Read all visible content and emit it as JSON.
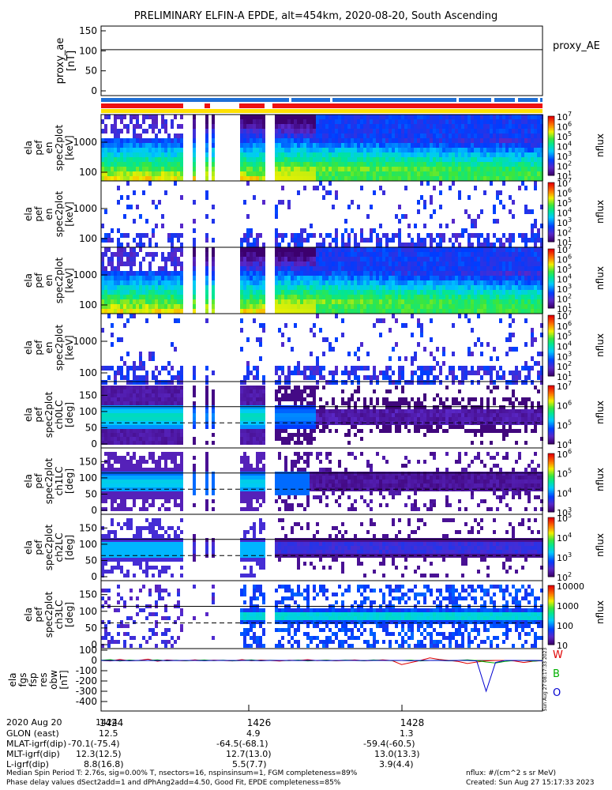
{
  "title": "PRELIMINARY ELFIN-A EPDE, alt=454km, 2020-08-20, South Ascending",
  "panels": [
    {
      "id": "proxy_ae",
      "ylabel": [
        "proxy_ae",
        "[nT]"
      ],
      "ticks": [
        "150",
        "100",
        "50",
        "0"
      ],
      "right_label": "proxy_AE"
    },
    {
      "id": "en1",
      "ylabel": [
        "ela",
        "pef",
        "en",
        "spec2plot",
        "[keV]"
      ],
      "ticks": [
        "1000",
        "100"
      ],
      "cb_label": "nflux"
    },
    {
      "id": "en2",
      "ylabel": [
        "ela",
        "pef",
        "en",
        "spec2plot",
        "[keV]"
      ],
      "ticks": [
        "1000",
        "100"
      ],
      "cb_label": "nflux"
    },
    {
      "id": "en3",
      "ylabel": [
        "ela",
        "pef",
        "en",
        "spec2plot",
        "[keV]"
      ],
      "ticks": [
        "1000",
        "100"
      ],
      "cb_label": "nflux"
    },
    {
      "id": "en4",
      "ylabel": [
        "ela",
        "pef",
        "en",
        "spec2plot",
        "[keV]"
      ],
      "ticks": [
        "1000",
        "100"
      ],
      "cb_label": "nflux"
    },
    {
      "id": "ch0",
      "ylabel": [
        "ela",
        "pef",
        "spec2plot",
        "ch0LC",
        "[deg]"
      ],
      "ticks": [
        "150",
        "100",
        "50",
        "0"
      ],
      "cb_label": "nflux"
    },
    {
      "id": "ch1",
      "ylabel": [
        "ela",
        "pef",
        "spec2plot",
        "ch1LC",
        "[deg]"
      ],
      "ticks": [
        "150",
        "100",
        "50",
        "0"
      ],
      "cb_label": "nflux"
    },
    {
      "id": "ch2",
      "ylabel": [
        "ela",
        "pef",
        "spec2plot",
        "ch2LC",
        "[deg]"
      ],
      "ticks": [
        "150",
        "100",
        "50",
        "0"
      ],
      "cb_label": "nflux"
    },
    {
      "id": "ch3",
      "ylabel": [
        "ela",
        "pef",
        "spec2plot",
        "ch3LC",
        "[deg]"
      ],
      "ticks": [
        "150",
        "100",
        "50",
        "0"
      ],
      "cb_label": "nflux"
    },
    {
      "id": "res",
      "ylabel": [
        "ela",
        "fgs",
        "fsp",
        "res",
        "obw",
        "[nT]"
      ],
      "ticks": [
        "100",
        "0",
        "-100",
        "-200",
        "-300",
        "-400"
      ],
      "legend": [
        "W",
        "B",
        "O"
      ]
    }
  ],
  "colorbars": {
    "energy": [
      "10^7",
      "10^6",
      "10^5",
      "10^4",
      "10^3",
      "10^2",
      "10^1"
    ],
    "ch0": [
      "10^7",
      "10^6",
      "10^5",
      "10^4"
    ],
    "ch1": [
      "10^6",
      "10^5",
      "10^4",
      "10^3"
    ],
    "ch2": [
      "10^5",
      "10^4",
      "10^3",
      "10^2"
    ],
    "ch3": [
      "10000",
      "1000",
      "100",
      "10"
    ]
  },
  "side_stamp": "Sun Aug 27 08:17:33 2023",
  "time_ticks": [
    "1424",
    "1426",
    "1428"
  ],
  "footer_rows": [
    {
      "label": "2020 Aug 20",
      "v1": "1424",
      "v2": "",
      "v3": ""
    },
    {
      "label": "GLON (east)",
      "v1": "12.5",
      "v2": "4.9",
      "v3": "1.3"
    },
    {
      "label": "MLAT-igrf(dip)",
      "v1": "-70.1(-75.4)",
      "v2": "-64.5(-68.1)",
      "v3": "-59.4(-60.5)"
    },
    {
      "label": "MLT-igrf(dip)",
      "v1": "12.3(12.5)",
      "v2": "12.7(13.0)",
      "v3": "13.0(13.3)"
    },
    {
      "label": "L-igrf(dip)",
      "v1": "8.8(16.8)",
      "v2": "5.5(7.7)",
      "v3": "3.9(4.4)"
    }
  ],
  "footnote1": "Median Spin Period T: 2.76s, sig=0.00% T, nsectors=16, nspinsinsum=1, FGM completeness=89%",
  "footnote2": "Phase delay values dSect2add=1 and dPhAng2add=4.50, Good Fit, EPDE completeness=85%",
  "units_note": "nflux: #/(cm^2 s sr MeV)",
  "created": "Created: Sun Aug 27 15:17:33 2023",
  "chart_data": {
    "type": "heatmap",
    "title": "PRELIMINARY ELFIN-A EPDE, alt=454km, 2020-08-20, South Ascending",
    "x_ticks": [
      "1424",
      "1426",
      "1428"
    ],
    "proxy_ae": {
      "ylim": [
        0,
        150
      ],
      "value": 103
    },
    "energy_ylim": [
      60,
      6000
    ],
    "pitch_ylim": [
      0,
      180
    ],
    "res_ylim": [
      -400,
      100
    ],
    "res_series": [
      {
        "color": "#e00000",
        "values": [
          0,
          -5,
          10,
          -3,
          0,
          12,
          -8,
          5,
          0,
          -4,
          6,
          -2,
          3,
          0,
          -5,
          8,
          -3,
          4,
          0,
          -6,
          2,
          0,
          8,
          -2,
          3,
          -4,
          0,
          5,
          -3,
          0,
          6,
          -2,
          -40,
          -20,
          0,
          25,
          10,
          0,
          -10,
          -30,
          -15,
          -5,
          0,
          0,
          -5,
          -20,
          -8,
          -2
        ]
      },
      {
        "color": "#00b000",
        "values": [
          2,
          8,
          -6,
          4,
          -2,
          0,
          6,
          -4,
          2,
          -3,
          0,
          5,
          -2,
          3,
          -4,
          0,
          6,
          -3,
          2,
          0,
          -2,
          4,
          -5,
          0,
          3,
          -2,
          4,
          0,
          -3,
          5,
          0,
          -2,
          0,
          3,
          -5,
          0,
          2,
          -4,
          0,
          6,
          -2,
          -15,
          -25,
          -10,
          0,
          0,
          -8,
          0
        ]
      },
      {
        "color": "#0000d0",
        "values": [
          0,
          -2,
          0,
          -3,
          0,
          0,
          -2,
          0,
          -1,
          0,
          0,
          -2,
          0,
          0,
          -1,
          0,
          0,
          -2,
          0,
          0,
          0,
          -1,
          0,
          0,
          -2,
          0,
          0,
          0,
          -1,
          0,
          0,
          0,
          0,
          -3,
          0,
          0,
          0,
          -2,
          0,
          0,
          -5,
          -300,
          -20,
          0,
          0,
          -2,
          0,
          -3
        ]
      }
    ]
  }
}
